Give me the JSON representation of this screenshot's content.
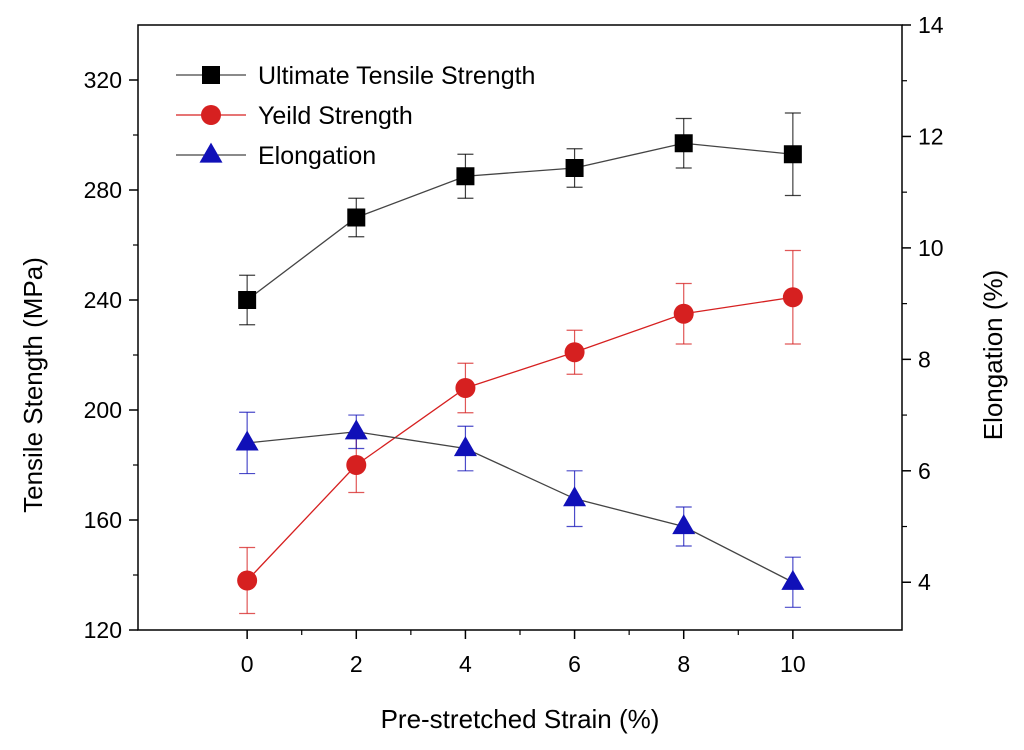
{
  "chart_data": {
    "type": "line",
    "title": "",
    "xlabel": "Pre-stretched Strain (%)",
    "ylabel": "Tensile Stength (MPa)",
    "y2label": "Elongation (%)",
    "x": [
      0,
      2,
      4,
      6,
      8,
      10
    ],
    "xticks": [
      0,
      2,
      4,
      6,
      8,
      10
    ],
    "xlim": [
      -2,
      12
    ],
    "ylim": [
      120,
      340
    ],
    "yticks": [
      120,
      160,
      200,
      240,
      280,
      320
    ],
    "y2lim": [
      3.143,
      14
    ],
    "y2ticks": [
      4,
      6,
      8,
      10,
      12,
      14
    ],
    "legend_position": "top-left",
    "grid": false,
    "series": [
      {
        "name": "Ultimate Tensile Strength",
        "axis": "left",
        "marker": "square",
        "color": "#000000",
        "line_color": "#444444",
        "values": [
          240,
          270,
          285,
          288,
          297,
          293
        ],
        "errors": [
          9,
          7,
          8,
          7,
          9,
          15
        ]
      },
      {
        "name": "Yeild Strength",
        "axis": "left",
        "marker": "circle",
        "color": "#d62020",
        "line_color": "#d62020",
        "values": [
          138,
          180,
          208,
          221,
          235,
          241
        ],
        "errors": [
          12,
          10,
          9,
          8,
          11,
          17
        ]
      },
      {
        "name": "Elongation",
        "axis": "right",
        "marker": "triangle",
        "color": "#1010b8",
        "line_color": "#444444",
        "values": [
          6.5,
          6.7,
          6.4,
          5.5,
          5.0,
          4.0
        ],
        "errors": [
          0.55,
          0.3,
          0.4,
          0.5,
          0.35,
          0.45
        ]
      }
    ]
  }
}
